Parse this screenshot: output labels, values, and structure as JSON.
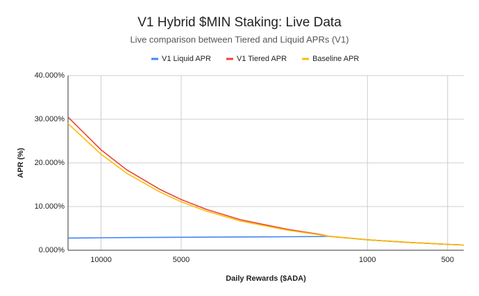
{
  "chart_data": {
    "type": "line",
    "title": "V1 Hybrid $MIN Staking: Live Data",
    "subtitle": "Live comparison between Tiered and Liquid APRs (V1)",
    "x_label": "Daily Rewards ($ADA)",
    "y_label": "APR (%)",
    "x": [
      13300,
      10000,
      8000,
      6000,
      5000,
      4000,
      3000,
      2000,
      1500,
      1400,
      1000,
      700,
      500,
      435
    ],
    "series": [
      {
        "name": "V1 Liquid APR",
        "color": "#4285f4",
        "values": [
          2.8,
          2.85,
          2.9,
          2.95,
          2.97,
          3.0,
          3.05,
          3.1,
          3.15,
          3.2,
          2.4,
          1.8,
          1.35,
          1.2
        ]
      },
      {
        "name": "V1 Tiered APR",
        "color": "#ea4335",
        "values": [
          30.5,
          23,
          18.4,
          13.9,
          11.6,
          9.3,
          7.0,
          4.8,
          3.6,
          3.2,
          2.4,
          1.8,
          1.35,
          1.2
        ]
      },
      {
        "name": "Baseline APR",
        "color": "#fbbc04",
        "values": [
          29,
          22,
          17.6,
          13.3,
          11.1,
          8.9,
          6.7,
          4.6,
          3.5,
          3.2,
          2.4,
          1.8,
          1.35,
          1.2
        ]
      }
    ],
    "xscale": "log",
    "x_reversed": true,
    "xlim": [
      13300,
      435
    ],
    "xticks": [
      10000,
      5000,
      1000,
      500
    ],
    "ylim": [
      0,
      40
    ],
    "yticks": [
      {
        "value": 0,
        "label": "0.000%"
      },
      {
        "value": 10,
        "label": "10.000%"
      },
      {
        "value": 20,
        "label": "20.000%"
      },
      {
        "value": 30,
        "label": "30.000%"
      },
      {
        "value": 40,
        "label": "40.000%"
      }
    ],
    "grid": true,
    "legend": "top"
  }
}
